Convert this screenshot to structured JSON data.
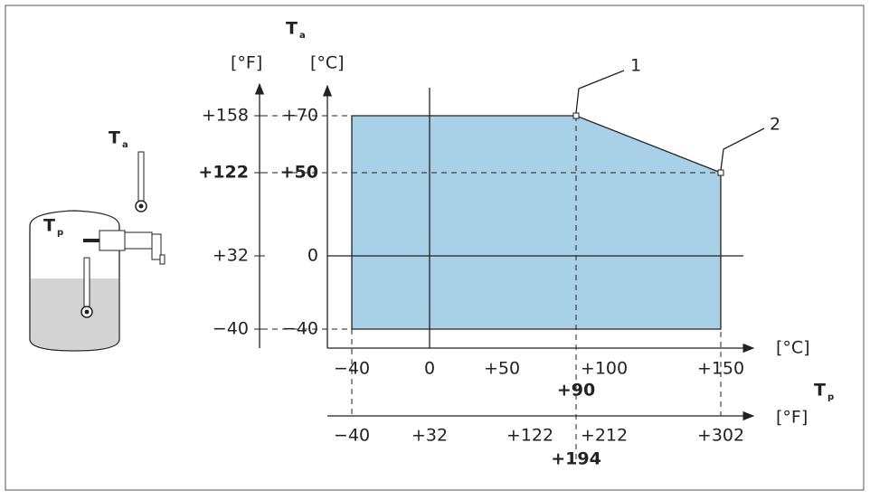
{
  "y_axis_fahrenheit": {
    "unit": "[°F]",
    "ticks": [
      "+158",
      "+122",
      "+32",
      "−40"
    ]
  },
  "y_axis_celsius": {
    "unit": "[°C]",
    "ticks": [
      "+70",
      "+50",
      "0",
      "−40"
    ]
  },
  "y_axis_symbol": {
    "main": "T",
    "sub": "a"
  },
  "x_axis_celsius": {
    "unit": "[°C]",
    "ticks": [
      "−40",
      "0",
      "+50",
      "+100",
      "+150"
    ],
    "marker": "+90"
  },
  "x_axis_fahrenheit": {
    "unit": "[°F]",
    "ticks": [
      "−40",
      "+32",
      "+122",
      "+212",
      "+302"
    ],
    "marker": "+194"
  },
  "x_axis_symbol": {
    "main": "T",
    "sub": "p"
  },
  "illustration": {
    "ambient": {
      "main": "T",
      "sub": "a"
    },
    "process": {
      "main": "T",
      "sub": "p"
    }
  },
  "callouts": [
    "1",
    "2"
  ]
}
